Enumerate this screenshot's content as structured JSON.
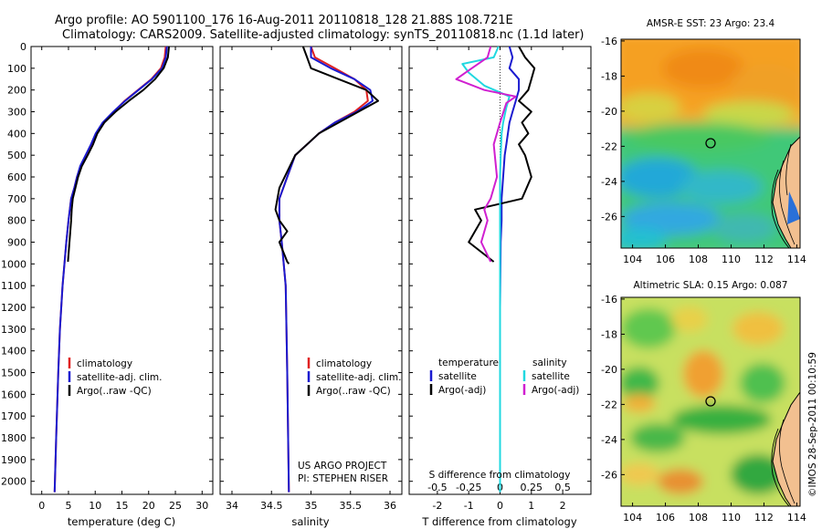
{
  "header": {
    "title_line1": "Argo profile: AO 5901100_176 16-Aug-2011 20110818_128 21.88S 108.721E",
    "title_line2": "Climatology: CARS2009. Satellite-adjusted climatology: synTS_20110818.nc (1.1d later)"
  },
  "footer": {
    "project_line1": "US ARGO PROJECT",
    "project_line2": "PI: STEPHEN RISER",
    "credit": "©IMOS 28-Sep-2011 00:10:59"
  },
  "colors": {
    "climatology": "#e02020",
    "satellite": "#1a1ad0",
    "argo": "#000000",
    "sal_satellite": "#20d8e0",
    "sal_argo": "#d020d0"
  },
  "chart_data": [
    {
      "id": "temperature",
      "type": "line",
      "xlabel": "temperature (deg C)",
      "ylabel": "",
      "xlim": [
        -2,
        32
      ],
      "ylim": [
        2060,
        0
      ],
      "xticks": [
        0,
        5,
        10,
        15,
        20,
        25,
        30
      ],
      "yticks": [
        0,
        100,
        200,
        300,
        400,
        500,
        600,
        700,
        800,
        900,
        1000,
        1100,
        1200,
        1300,
        1400,
        1500,
        1600,
        1700,
        1800,
        1900,
        2000
      ],
      "legend": {
        "position": "lower-middle",
        "entries": [
          "climatology",
          "satellite-adj. clim.",
          "Argo(..raw -QC)"
        ]
      },
      "series": [
        {
          "name": "climatology",
          "color_key": "climatology",
          "x": [
            23.2,
            23.0,
            22.3,
            20.5,
            18.0,
            15.5,
            13.5,
            11.5,
            10.2,
            9.3,
            8.3,
            7.3,
            6.6,
            6.1,
            5.5,
            5.0,
            4.6,
            3.9,
            3.4,
            3.1,
            2.7,
            2.4
          ],
          "y": [
            0,
            50,
            100,
            150,
            200,
            250,
            300,
            350,
            400,
            450,
            500,
            550,
            600,
            650,
            700,
            800,
            900,
            1100,
            1300,
            1500,
            1800,
            2050
          ]
        },
        {
          "name": "satellite-adj. clim.",
          "color_key": "satellite",
          "x": [
            23.4,
            23.2,
            22.5,
            20.6,
            18.1,
            15.6,
            13.4,
            11.4,
            10.1,
            9.2,
            8.2,
            7.2,
            6.6,
            6.1,
            5.5,
            5.0,
            4.6,
            3.9,
            3.4,
            3.1,
            2.7,
            2.4
          ],
          "y": [
            0,
            50,
            100,
            150,
            200,
            250,
            300,
            350,
            400,
            450,
            500,
            550,
            600,
            650,
            700,
            800,
            900,
            1100,
            1300,
            1500,
            1800,
            2050
          ]
        },
        {
          "name": "Argo(..raw -QC)",
          "color_key": "argo",
          "x": [
            23.8,
            23.6,
            22.8,
            21.2,
            19.0,
            16.3,
            13.8,
            11.7,
            10.4,
            9.6,
            8.6,
            7.5,
            6.8,
            6.3,
            5.8,
            5.6,
            5.5,
            4.9
          ],
          "y": [
            0,
            50,
            100,
            150,
            200,
            250,
            300,
            350,
            400,
            450,
            500,
            550,
            600,
            650,
            700,
            750,
            800,
            990
          ]
        }
      ]
    },
    {
      "id": "salinity",
      "type": "line",
      "xlabel": "salinity",
      "ylabel": "",
      "xlim": [
        33.85,
        36.15
      ],
      "ylim": [
        2060,
        0
      ],
      "xticks": [
        34,
        34.5,
        35,
        35.5,
        36
      ],
      "legend": {
        "position": "lower-middle",
        "entries": [
          "climatology",
          "satellite-adj. clim.",
          "Argo(..raw -QC)"
        ]
      },
      "series": [
        {
          "name": "climatology",
          "color_key": "climatology",
          "x": [
            35.0,
            35.05,
            35.3,
            35.55,
            35.7,
            35.72,
            35.55,
            35.3,
            35.1,
            34.95,
            34.8,
            34.7,
            34.6,
            34.6,
            34.63,
            34.68,
            34.7,
            34.72
          ],
          "y": [
            0,
            50,
            100,
            150,
            200,
            250,
            300,
            350,
            400,
            450,
            500,
            600,
            700,
            800,
            900,
            1100,
            1500,
            2050
          ]
        },
        {
          "name": "satellite-adj. clim.",
          "color_key": "satellite",
          "x": [
            35.0,
            35.0,
            35.25,
            35.55,
            35.75,
            35.78,
            35.58,
            35.3,
            35.1,
            34.95,
            34.8,
            34.7,
            34.6,
            34.6,
            34.63,
            34.68,
            34.7,
            34.72
          ],
          "y": [
            0,
            50,
            100,
            150,
            200,
            250,
            300,
            350,
            400,
            450,
            500,
            600,
            700,
            800,
            900,
            1100,
            1500,
            2050
          ]
        },
        {
          "name": "Argo(..raw -QC)",
          "color_key": "argo",
          "x": [
            34.9,
            34.95,
            35.0,
            35.35,
            35.7,
            35.85,
            35.6,
            35.35,
            35.1,
            34.95,
            34.8,
            34.6,
            34.55,
            34.6,
            34.7,
            34.6,
            34.7,
            34.72
          ],
          "y": [
            0,
            50,
            100,
            150,
            200,
            250,
            300,
            350,
            400,
            450,
            500,
            650,
            750,
            800,
            850,
            900,
            990,
            1000
          ]
        }
      ]
    },
    {
      "id": "differences",
      "type": "line",
      "xlabel": "T difference from climatology",
      "xlabel2": "S difference from climatology",
      "xlim": [
        -2.9,
        2.9
      ],
      "ylim": [
        2060,
        0
      ],
      "xticks": [
        -2,
        -1,
        0,
        1,
        2
      ],
      "xticks_salinity": [
        "-0.5",
        "-0.25",
        "0",
        "0.25",
        "0.5"
      ],
      "legend": {
        "position": "lower-middle",
        "temperature_header": "temperature",
        "salinity_header": "salinity",
        "temperature_entries": [
          "satellite",
          "Argo(-adj)"
        ],
        "salinity_entries": [
          "satellite",
          "Argo(-adj)"
        ]
      },
      "series": [
        {
          "name": "satellite",
          "group": "temperature",
          "color_key": "satellite",
          "x": [
            0.3,
            0.4,
            0.3,
            0.6,
            0.6,
            0.5,
            0.4,
            0.3,
            0.25,
            0.2,
            0.15,
            0.1,
            0.05,
            0.05,
            0.02,
            0.0,
            0.0,
            0.0
          ],
          "y": [
            0,
            50,
            100,
            150,
            200,
            250,
            300,
            350,
            400,
            450,
            500,
            600,
            700,
            800,
            900,
            1200,
            1600,
            2050
          ]
        },
        {
          "name": "Argo(-adj)",
          "group": "temperature",
          "color_key": "argo",
          "x": [
            0.6,
            0.8,
            1.1,
            1.0,
            0.9,
            0.6,
            1.0,
            0.7,
            0.9,
            0.6,
            0.8,
            1.0,
            0.7,
            -0.8,
            -0.6,
            -1.0,
            -0.2
          ],
          "y": [
            0,
            50,
            100,
            150,
            200,
            250,
            300,
            350,
            400,
            450,
            500,
            600,
            700,
            750,
            800,
            900,
            990
          ]
        },
        {
          "name": "satellite",
          "group": "salinity",
          "color_key": "sal_satellite",
          "x": [
            -0.05,
            -0.2,
            -1.2,
            -1.0,
            -0.5,
            0.3,
            0.2,
            0.1,
            0.05,
            0.02,
            0.0,
            0.0,
            0.0,
            0.0,
            0.0,
            0.0
          ],
          "y": [
            0,
            50,
            80,
            120,
            180,
            230,
            280,
            350,
            400,
            500,
            600,
            800,
            900,
            1200,
            1600,
            2050
          ]
        },
        {
          "name": "Argo(-adj)",
          "group": "salinity",
          "color_key": "sal_argo",
          "x": [
            -0.3,
            -0.4,
            -0.9,
            -1.4,
            -0.5,
            0.5,
            0.2,
            0.0,
            -0.2,
            -0.1,
            -0.3,
            -0.5,
            -0.4,
            -0.6,
            -0.3
          ],
          "y": [
            0,
            50,
            100,
            150,
            200,
            230,
            260,
            350,
            450,
            600,
            700,
            750,
            800,
            900,
            990
          ]
        }
      ]
    },
    {
      "id": "sst-map",
      "type": "heatmap",
      "title": "AMSR-E SST: 23  Argo: 23.4",
      "xticks": [
        104,
        106,
        108,
        110,
        112,
        114
      ],
      "yticks": [
        -16,
        -18,
        -20,
        -22,
        -24,
        -26
      ],
      "xlim": [
        103.3,
        114.2
      ],
      "ylim": [
        -27.8,
        -15.9
      ],
      "marker": {
        "lon": 108.721,
        "lat": -21.88
      }
    },
    {
      "id": "sla-map",
      "type": "heatmap",
      "title": "Altimetric SLA: 0.15  Argo: 0.087",
      "xticks": [
        104,
        106,
        108,
        110,
        112,
        114
      ],
      "yticks": [
        -16,
        -18,
        -20,
        -22,
        -24,
        -26
      ],
      "xlim": [
        103.3,
        114.2
      ],
      "ylim": [
        -27.8,
        -15.9
      ],
      "marker": {
        "lon": 108.721,
        "lat": -21.88
      }
    }
  ]
}
